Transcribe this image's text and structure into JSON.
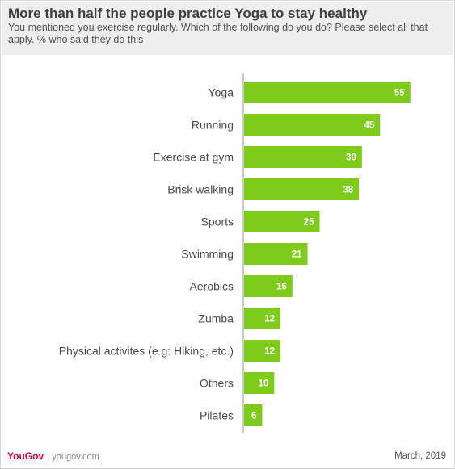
{
  "header": {
    "title": "More than half the people practice Yoga to stay healthy",
    "subtitle": "You mentioned you exercise regularly. Which of the following do you do? Please select all that apply. % who said they do this"
  },
  "footer": {
    "brand": "YouGov",
    "url": "yougov.com",
    "date": "March,  2019"
  },
  "colors": {
    "bar": "#7fcb1c",
    "value_label": "#ffffff",
    "category_label": "#4a4a4a",
    "axis": "#999999"
  },
  "chart_data": {
    "type": "bar",
    "orientation": "horizontal",
    "categories": [
      "Yoga",
      "Running",
      "Exercise at gym",
      "Brisk walking",
      "Sports",
      "Swimming",
      "Aerobics",
      "Zumba",
      "Physical activites (e.g: Hiking, etc.)",
      "Others",
      "Pilates"
    ],
    "values": [
      55,
      45,
      39,
      38,
      25,
      21,
      16,
      12,
      12,
      10,
      6
    ],
    "xlim": [
      0,
      60
    ],
    "grid": false,
    "data_labels": true
  }
}
